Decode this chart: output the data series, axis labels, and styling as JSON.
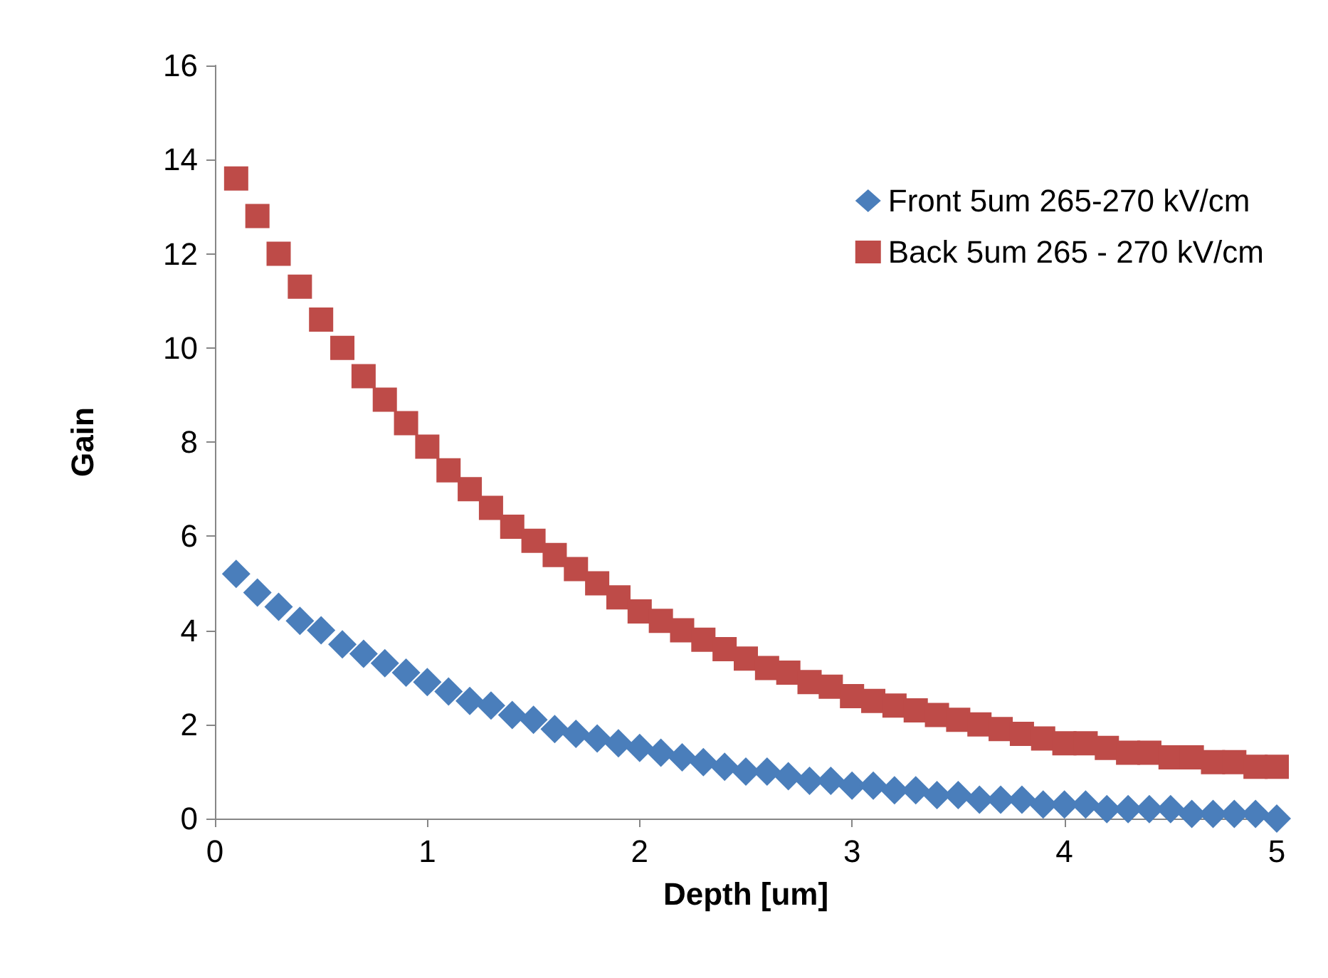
{
  "chart_data": {
    "type": "scatter",
    "xlabel": "Depth [um]",
    "ylabel": "Gain",
    "x": [
      0.1,
      0.2,
      0.3,
      0.4,
      0.5,
      0.6,
      0.7,
      0.8,
      0.9,
      1.0,
      1.1,
      1.2,
      1.3,
      1.4,
      1.5,
      1.6,
      1.7,
      1.8,
      1.9,
      2.0,
      2.1,
      2.2,
      2.3,
      2.4,
      2.5,
      2.6,
      2.7,
      2.8,
      2.9,
      3.0,
      3.1,
      3.2,
      3.3,
      3.4,
      3.5,
      3.6,
      3.7,
      3.8,
      3.9,
      4.0,
      4.1,
      4.2,
      4.3,
      4.4,
      4.5,
      4.6,
      4.7,
      4.8,
      4.9,
      5.0
    ],
    "series": [
      {
        "name": "Front 5um 265-270 kV/cm",
        "color": "#4a7ebb",
        "marker": "diamond",
        "values": [
          5.2,
          4.8,
          4.5,
          4.2,
          4.0,
          3.7,
          3.5,
          3.3,
          3.1,
          2.9,
          2.7,
          2.5,
          2.4,
          2.2,
          2.1,
          1.9,
          1.8,
          1.7,
          1.6,
          1.5,
          1.4,
          1.3,
          1.2,
          1.1,
          1.0,
          1.0,
          0.9,
          0.8,
          0.8,
          0.7,
          0.7,
          0.6,
          0.6,
          0.5,
          0.5,
          0.4,
          0.4,
          0.4,
          0.3,
          0.3,
          0.3,
          0.2,
          0.2,
          0.2,
          0.2,
          0.1,
          0.1,
          0.1,
          0.1,
          0.0
        ]
      },
      {
        "name": "Back 5um 265 - 270 kV/cm",
        "color": "#be4b48",
        "marker": "square",
        "values": [
          13.6,
          12.8,
          12.0,
          11.3,
          10.6,
          10.0,
          9.4,
          8.9,
          8.4,
          7.9,
          7.4,
          7.0,
          6.6,
          6.2,
          5.9,
          5.6,
          5.3,
          5.0,
          4.7,
          4.4,
          4.2,
          4.0,
          3.8,
          3.6,
          3.4,
          3.2,
          3.1,
          2.9,
          2.8,
          2.6,
          2.5,
          2.4,
          2.3,
          2.2,
          2.1,
          2.0,
          1.9,
          1.8,
          1.7,
          1.6,
          1.6,
          1.5,
          1.4,
          1.4,
          1.3,
          1.3,
          1.2,
          1.2,
          1.1,
          1.1
        ]
      }
    ],
    "xlim": [
      0,
      5
    ],
    "xticks": [
      0,
      1,
      2,
      3,
      4,
      5
    ],
    "ylim": [
      0,
      16
    ],
    "yticks": [
      0,
      2,
      4,
      6,
      8,
      10,
      12,
      14,
      16
    ],
    "grid": false,
    "legend": "top right"
  }
}
